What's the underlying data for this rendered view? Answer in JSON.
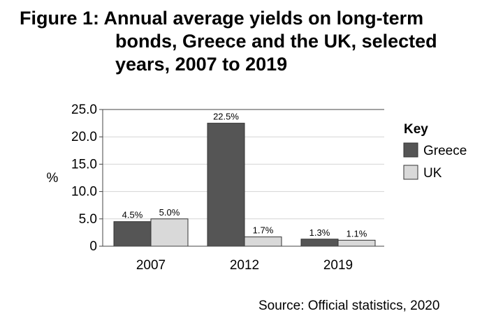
{
  "title_lines": [
    "Figure 1: Annual average yields on long-term",
    "bonds, Greece and the UK, selected",
    "years, 2007 to 2019"
  ],
  "source": "Source: Official statistics, 2020",
  "chart_data": {
    "type": "bar",
    "categories": [
      "2007",
      "2012",
      "2019"
    ],
    "series": [
      {
        "name": "Greece",
        "values": [
          4.5,
          22.5,
          1.3
        ],
        "labels": [
          "4.5%",
          "22.5%",
          "1.3%"
        ],
        "color": "#555555"
      },
      {
        "name": "UK",
        "values": [
          5.0,
          1.7,
          1.1
        ],
        "labels": [
          "5.0%",
          "1.7%",
          "1.1%"
        ],
        "color": "#d9d9d9"
      }
    ],
    "ylabel": "%",
    "ylim": [
      0,
      25
    ],
    "yticks": [
      0,
      5,
      10,
      15,
      20,
      25
    ],
    "ytick_labels": [
      "0",
      "5.0",
      "10.0",
      "15.0",
      "20.0",
      "25.0"
    ],
    "legend_title": "Key",
    "legend_position": "right",
    "grid": true
  }
}
